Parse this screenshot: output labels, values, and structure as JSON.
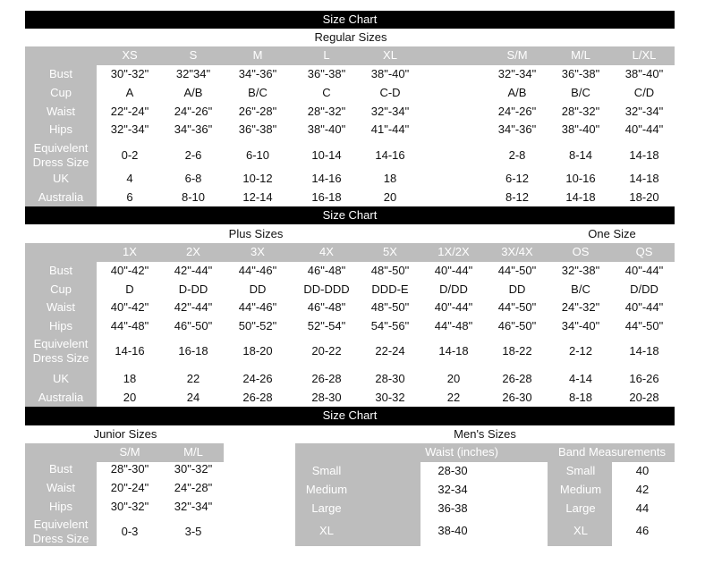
{
  "banner": "Size Chart",
  "regular": {
    "title": "Regular Sizes",
    "sizes": [
      "XS",
      "S",
      "M",
      "L",
      "XL",
      "S/M",
      "M/L",
      "L/XL"
    ],
    "rows": [
      {
        "label": "Bust",
        "values": [
          "30\"-32\"",
          "32\"34\"",
          "34\"-36\"",
          "36\"-38\"",
          "38\"-40\"",
          "32\"-34\"",
          "36\"-38\"",
          "38\"-40\""
        ]
      },
      {
        "label": "Cup",
        "values": [
          "A",
          "A/B",
          "B/C",
          "C",
          "C-D",
          "A/B",
          "B/C",
          "C/D"
        ]
      },
      {
        "label": "Waist",
        "values": [
          "22\"-24\"",
          "24\"-26\"",
          "26\"-28\"",
          "28\"-32\"",
          "32\"-34\"",
          "24\"-26\"",
          "28\"-32\"",
          "32\"-34\""
        ]
      },
      {
        "label": "Hips",
        "values": [
          "32\"-34\"",
          "34\"-36\"",
          "36\"-38\"",
          "38\"-40\"",
          "41\"-44\"",
          "34\"-36\"",
          "38\"-40\"",
          "40\"-44\""
        ]
      },
      {
        "label": "Equivelent Dress Size",
        "values": [
          "0-2",
          "2-6",
          "6-10",
          "10-14",
          "14-16",
          "2-8",
          "8-14",
          "14-18"
        ]
      },
      {
        "label": "UK",
        "values": [
          "4",
          "6-8",
          "10-12",
          "14-16",
          "18",
          "6-12",
          "10-16",
          "14-18"
        ]
      },
      {
        "label": "Australia",
        "values": [
          "6",
          "8-10",
          "12-14",
          "16-18",
          "20",
          "8-12",
          "14-18",
          "18-20"
        ]
      }
    ]
  },
  "plus": {
    "title": "Plus Sizes",
    "one_size_title": "One Size",
    "sizes": [
      "1X",
      "2X",
      "3X",
      "4X",
      "5X",
      "1X/2X",
      "3X/4X",
      "OS",
      "QS"
    ],
    "rows": [
      {
        "label": "Bust",
        "values": [
          "40\"-42\"",
          "42\"-44\"",
          "44\"-46\"",
          "46\"-48\"",
          "48\"-50\"",
          "40\"-44\"",
          "44\"-50\"",
          "32\"-38\"",
          "40\"-44\""
        ]
      },
      {
        "label": "Cup",
        "values": [
          "D",
          "D-DD",
          "DD",
          "DD-DDD",
          "DDD-E",
          "D/DD",
          "DD",
          "B/C",
          "D/DD"
        ]
      },
      {
        "label": "Waist",
        "values": [
          "40\"-42\"",
          "42\"-44\"",
          "44\"-46\"",
          "46\"-48\"",
          "48\"-50\"",
          "40\"-44\"",
          "44\"-50\"",
          "24\"-32\"",
          "40\"-44\""
        ]
      },
      {
        "label": "Hips",
        "values": [
          "44\"-48\"",
          "46\"-50\"",
          "50\"-52\"",
          "52\"-54\"",
          "54\"-56\"",
          "44\"-48\"",
          "46\"-50\"",
          "34\"-40\"",
          "44\"-50\""
        ]
      },
      {
        "label": "Equivelent Dress Size",
        "values": [
          "14-16",
          "16-18",
          "18-20",
          "20-22",
          "22-24",
          "14-18",
          "18-22",
          "2-12",
          "14-18"
        ]
      },
      {
        "label": "UK",
        "values": [
          "18",
          "22",
          "24-26",
          "26-28",
          "28-30",
          "20",
          "26-28",
          "4-14",
          "16-26"
        ]
      },
      {
        "label": "Australia",
        "values": [
          "20",
          "24",
          "26-28",
          "28-30",
          "30-32",
          "22",
          "26-30",
          "8-18",
          "20-28"
        ]
      }
    ]
  },
  "junior": {
    "title": "Junior Sizes",
    "sizes": [
      "S/M",
      "M/L"
    ],
    "rows": [
      {
        "label": "Bust",
        "values": [
          "28\"-30\"",
          "30\"-32\""
        ]
      },
      {
        "label": "Waist",
        "values": [
          "20\"-24\"",
          "24\"-28\""
        ]
      },
      {
        "label": "Hips",
        "values": [
          "30\"-32\"",
          "32\"-34\""
        ]
      },
      {
        "label": "Equivelent Dress Size",
        "values": [
          "0-3",
          "3-5"
        ]
      }
    ]
  },
  "mens": {
    "title": "Men's Sizes",
    "waist_header": "Waist (inches)",
    "band_header": "Band Measurements",
    "rows": [
      {
        "label": "Small",
        "waist": "28-30",
        "band_label": "Small",
        "band": "40"
      },
      {
        "label": "Medium",
        "waist": "32-34",
        "band_label": "Medium",
        "band": "42"
      },
      {
        "label": "Large",
        "waist": "36-38",
        "band_label": "Large",
        "band": "44"
      },
      {
        "label": "XL",
        "waist": "38-40",
        "band_label": "XL",
        "band": "46"
      }
    ]
  }
}
